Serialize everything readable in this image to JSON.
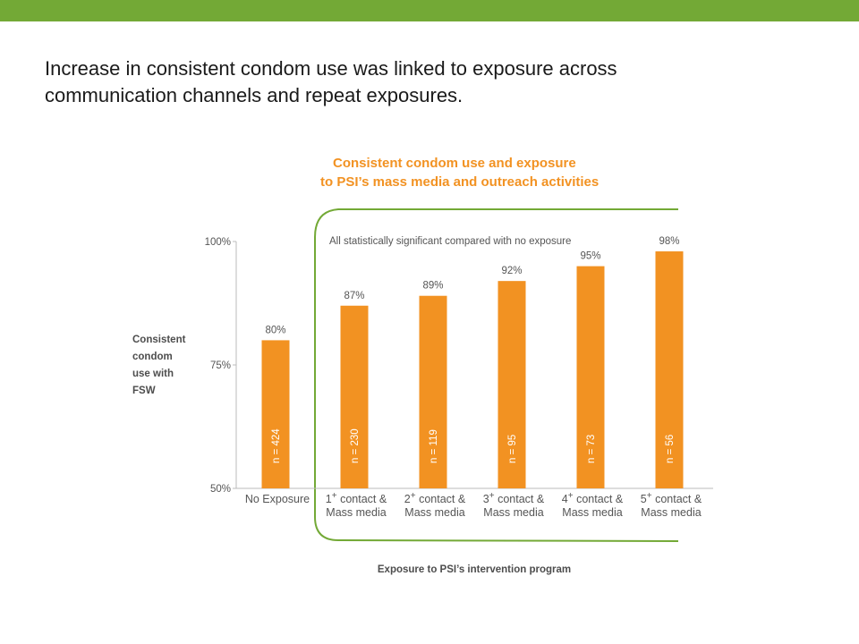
{
  "slide": {
    "heading_line1": "Increase in consistent condom use was linked to exposure across",
    "heading_line2": "communication channels and repeat exposures.",
    "accent_color": "#73a936"
  },
  "chart_data": {
    "type": "bar",
    "title_line1": "Consistent condom use and exposure",
    "title_line2": "to PSI’s mass media and outreach activities",
    "ylabel_lines": [
      "Consistent",
      "condom",
      "use with",
      "FSW"
    ],
    "xlabel": "Exposure to PSI’s intervention program",
    "ylim": [
      50,
      100
    ],
    "yticks": [
      {
        "value": 100,
        "label": "100%"
      },
      {
        "value": 75,
        "label": "75%"
      },
      {
        "value": 50,
        "label": "50%"
      }
    ],
    "categories": [
      {
        "line1": "No Exposure",
        "sup": "",
        "line1b": "",
        "line2": ""
      },
      {
        "line1": "1",
        "sup": "+",
        "line1b": " contact &",
        "line2": "Mass media"
      },
      {
        "line1": "2",
        "sup": "+",
        "line1b": " contact &",
        "line2": "Mass media"
      },
      {
        "line1": "3",
        "sup": "+",
        "line1b": " contact &",
        "line2": "Mass media"
      },
      {
        "line1": "4",
        "sup": "+",
        "line1b": " contact &",
        "line2": "Mass media"
      },
      {
        "line1": "5",
        "sup": "+",
        "line1b": " contact &",
        "line2": "Mass media"
      }
    ],
    "values": [
      80,
      87,
      89,
      92,
      95,
      98
    ],
    "value_labels": [
      "80%",
      "87%",
      "89%",
      "92%",
      "95%",
      "98%"
    ],
    "sample_sizes": [
      "n = 424",
      "n = 230",
      "n = 119",
      "n = 95",
      "n = 73",
      "n = 56"
    ],
    "annotation": "All statistically significant compared with no exposure",
    "bar_color": "#f29222",
    "title_color": "#f29222",
    "bracket_color": "#73a936",
    "grid": false
  }
}
